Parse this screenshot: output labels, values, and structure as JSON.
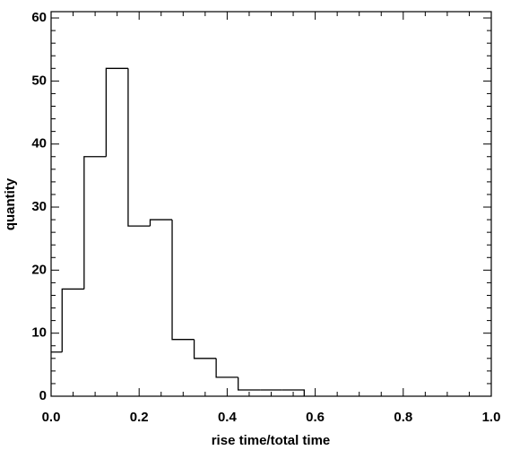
{
  "chart_data": {
    "type": "histogram",
    "xlabel": "rise time/total time",
    "ylabel": "quantity",
    "bins": [
      -0.025,
      0.025,
      0.075,
      0.125,
      0.175,
      0.225,
      0.275,
      0.325,
      0.375,
      0.425,
      0.475,
      0.525,
      0.575
    ],
    "values": [
      7,
      17,
      38,
      52,
      27,
      28,
      9,
      6,
      3,
      1,
      1,
      1
    ],
    "color": "#000000",
    "xlim": [
      0,
      1
    ],
    "ylim": [
      0,
      61
    ],
    "xticks": [
      {
        "value": 0,
        "label": "0.0"
      },
      {
        "value": 0.2,
        "label": "0.2"
      },
      {
        "value": 0.4,
        "label": "0.4"
      },
      {
        "value": 0.6,
        "label": "0.6"
      },
      {
        "value": 0.8,
        "label": "0.8"
      },
      {
        "value": 1,
        "label": "1.0"
      }
    ],
    "yticks": [
      0,
      10,
      20,
      30,
      40,
      50,
      60
    ]
  }
}
